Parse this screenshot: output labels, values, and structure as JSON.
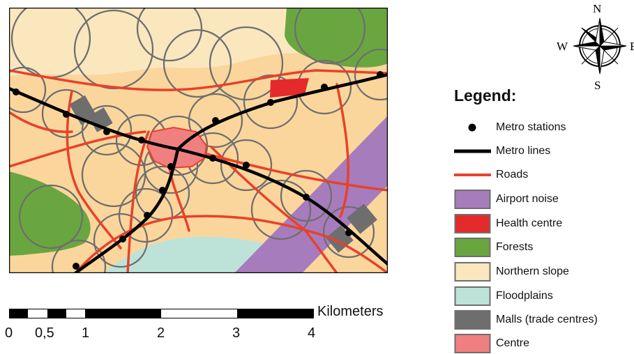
{
  "compass": {
    "north": "N",
    "south": "S",
    "west": "W",
    "east": "E"
  },
  "legend": {
    "title": "Legend:",
    "items": [
      {
        "label": "Metro stations",
        "symbol": "point",
        "color": "#000000"
      },
      {
        "label": "Metro lines",
        "symbol": "line",
        "color": "#000000"
      },
      {
        "label": "Roads",
        "symbol": "line",
        "color": "#e8412b"
      },
      {
        "label": "Airport noise",
        "symbol": "fill",
        "color": "#a77cbd"
      },
      {
        "label": "Health centre",
        "symbol": "fill",
        "color": "#e42a2a"
      },
      {
        "label": "Forests",
        "symbol": "fill",
        "color": "#6aa640"
      },
      {
        "label": "Northern slope",
        "symbol": "fill",
        "color": "#fbe7be"
      },
      {
        "label": "Floodplains",
        "symbol": "fill",
        "color": "#bde3d9"
      },
      {
        "label": "Malls (trade centres)",
        "symbol": "fill",
        "color": "#6e6e6e"
      },
      {
        "label": "Centre",
        "symbol": "fill",
        "color": "#f08080"
      }
    ]
  },
  "scale": {
    "unit": "Kilometers",
    "ticks": [
      "0",
      "0,5",
      "1",
      "2",
      "3",
      "4"
    ]
  },
  "map_colors": {
    "base_land": "#fbd69c",
    "buffer_outline": "#6e6e6e",
    "map_border": "#000000"
  }
}
